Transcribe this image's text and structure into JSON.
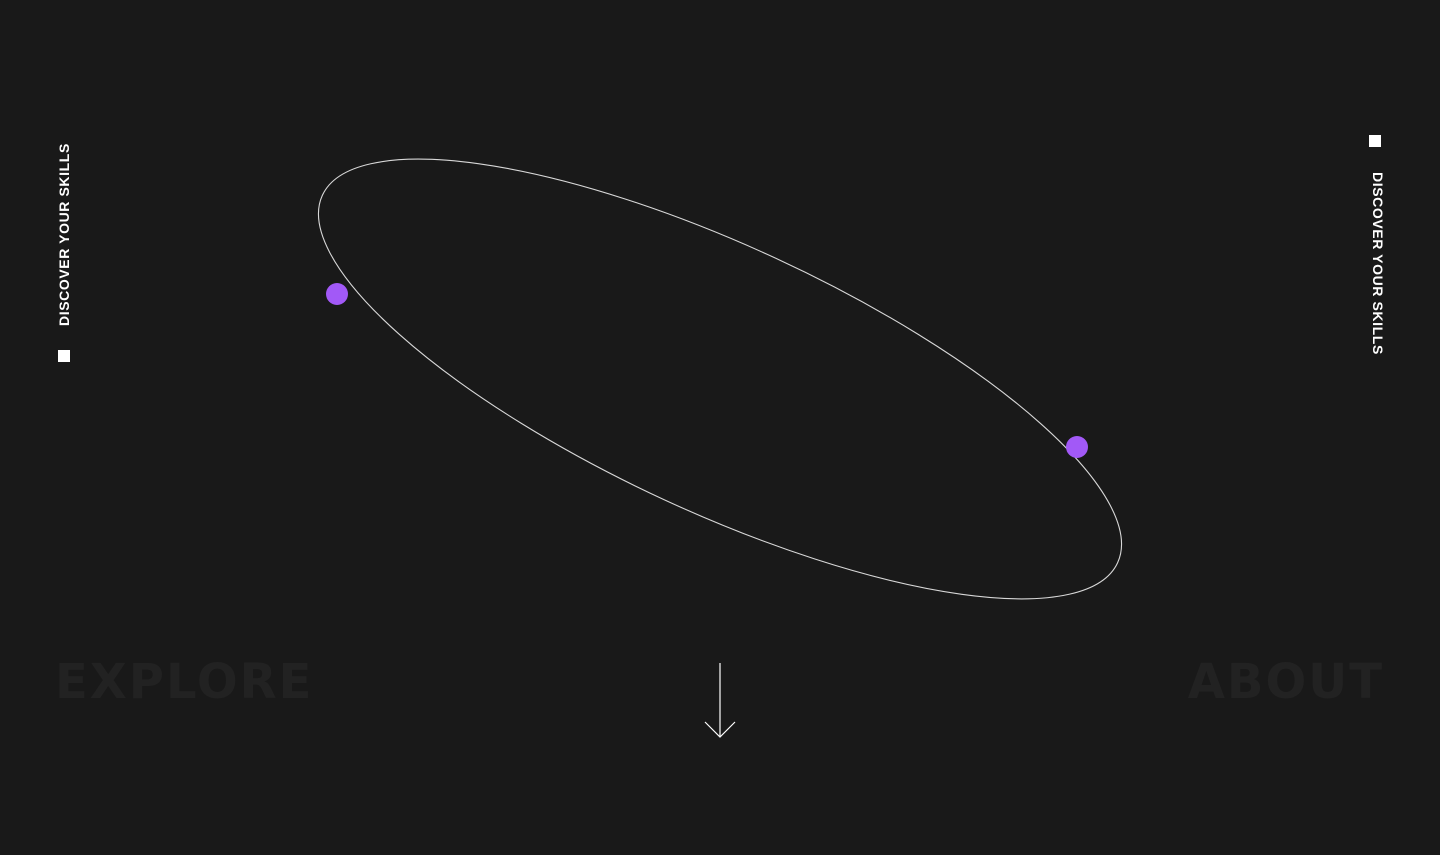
{
  "side": {
    "left_label": "DISCOVER YOUR SKILLS",
    "right_label": "DISCOVER YOUR SKILLS"
  },
  "nav": {
    "explore": "EXPLORE",
    "about": "ABOUT"
  },
  "colors": {
    "background": "#191919",
    "accent": "#a259f7",
    "orbit_line": "#d8d8d8",
    "faded_text": "#222222",
    "foreground": "#ffffff"
  },
  "icons": {
    "scroll": "arrow-down-icon",
    "marker": "square-marker-icon"
  }
}
